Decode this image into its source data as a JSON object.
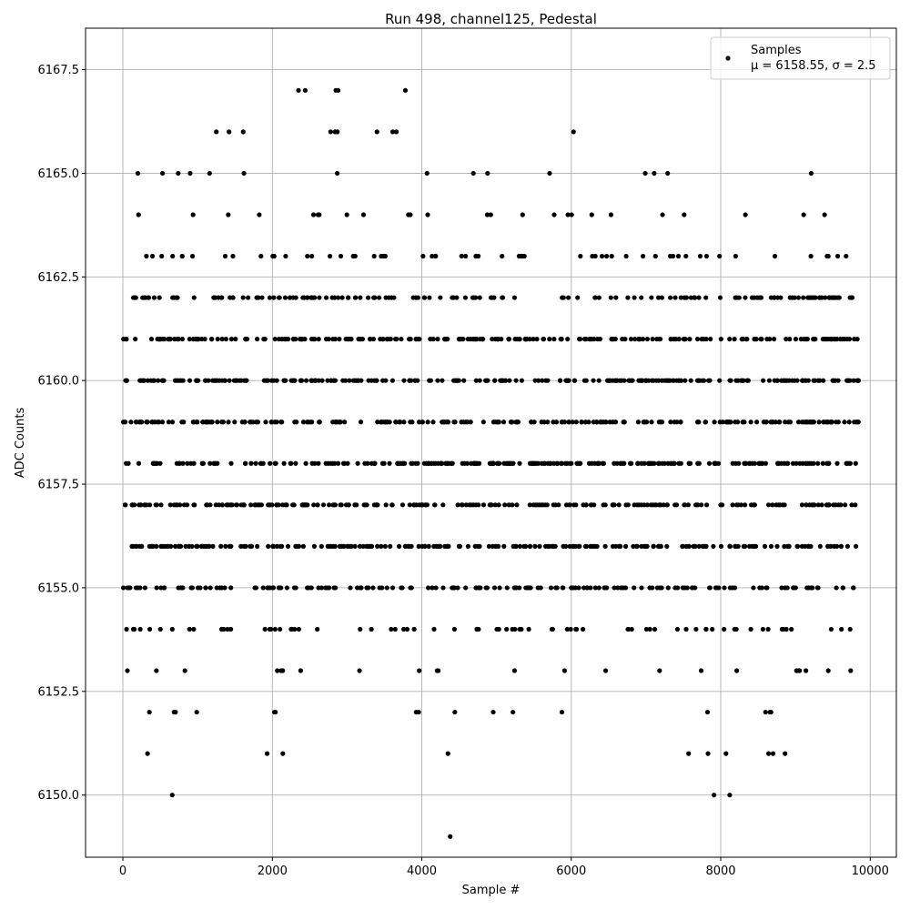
{
  "chart_data": {
    "type": "scatter",
    "title": "Run 498, channel125, Pedestal",
    "xlabel": "Sample #",
    "ylabel": "ADC Counts",
    "xlim": [
      -500,
      10350
    ],
    "ylim": [
      6148.5,
      6168.5
    ],
    "grid": true,
    "legend_position": "top-right",
    "marker_color": "#000000",
    "x_ticks": [
      0,
      2000,
      4000,
      6000,
      8000,
      10000
    ],
    "x_tick_labels": [
      "0",
      "2000",
      "4000",
      "6000",
      "8000",
      "10000"
    ],
    "y_ticks": [
      6150.0,
      6152.5,
      6155.0,
      6157.5,
      6160.0,
      6162.5,
      6165.0,
      6167.5
    ],
    "y_tick_labels": [
      "6150.0",
      "6152.5",
      "6155.0",
      "6157.5",
      "6160.0",
      "6162.5",
      "6165.0",
      "6167.5"
    ],
    "series": [
      {
        "name": "Samples",
        "stats_label": "μ = 6158.55, σ = 2.5",
        "mean": 6158.55,
        "sigma": 2.5,
        "n_samples": 9850,
        "points": [
          [
            660,
            6150
          ],
          [
            7910,
            6150
          ],
          [
            8120,
            6150
          ],
          [
            4380,
            6149
          ],
          [
            330,
            6151
          ],
          [
            1930,
            6151
          ],
          [
            2140,
            6151
          ],
          [
            4350,
            6151
          ],
          [
            7570,
            6151
          ],
          [
            7830,
            6151
          ],
          [
            8070,
            6151
          ],
          [
            8640,
            6151
          ],
          [
            8700,
            6151
          ],
          [
            8860,
            6151
          ],
          [
            2350,
            6167
          ],
          [
            2440,
            6167
          ],
          [
            2850,
            6167
          ],
          [
            2880,
            6167
          ],
          [
            3780,
            6167
          ],
          [
            1250,
            6166
          ],
          [
            1420,
            6166
          ],
          [
            1610,
            6166
          ],
          [
            2780,
            6166
          ],
          [
            2840,
            6166
          ],
          [
            2870,
            6166
          ],
          [
            3400,
            6166
          ],
          [
            3610,
            6166
          ],
          [
            3660,
            6166
          ],
          [
            6030,
            6166
          ]
        ],
        "row_segments": [
          {
            "y": 6152,
            "ranges": [
              [
                160,
                420
              ],
              [
                560,
                1020
              ],
              [
                2000,
                2500
              ],
              [
                3000,
                3100
              ],
              [
                3900,
                4700
              ],
              [
                4900,
                5500
              ],
              [
                5850,
                5900
              ],
              [
                7500,
                8100
              ],
              [
                8300,
                9050
              ],
              [
                9700,
                9850
              ]
            ],
            "density": 0.35
          },
          {
            "y": 6153,
            "ranges": [
              [
                0,
                560
              ],
              [
                820,
                840
              ],
              [
                1680,
                2150
              ],
              [
                2250,
                2700
              ],
              [
                3150,
                3250
              ],
              [
                3900,
                4050
              ],
              [
                4200,
                4700
              ],
              [
                5200,
                5650
              ],
              [
                5900,
                5920
              ],
              [
                6450,
                6470
              ],
              [
                7100,
                7250
              ],
              [
                7700,
                9150
              ],
              [
                9350,
                9850
              ]
            ],
            "density": 0.35
          },
          {
            "y": 6154,
            "ranges": [
              [
                0,
                560
              ],
              [
                650,
                1050
              ],
              [
                1300,
                2700
              ],
              [
                3150,
                3200
              ],
              [
                3300,
                3350
              ],
              [
                3500,
                4050
              ],
              [
                4100,
                6400
              ],
              [
                6600,
                9850
              ]
            ],
            "density": 0.55
          },
          {
            "y": 6155,
            "ranges": [
              [
                0,
                9850
              ]
            ],
            "density": 0.8
          },
          {
            "y": 6156,
            "ranges": [
              [
                0,
                9850
              ]
            ],
            "density": 0.9
          },
          {
            "y": 6157,
            "ranges": [
              [
                0,
                9850
              ]
            ],
            "density": 0.95
          },
          {
            "y": 6158,
            "ranges": [
              [
                0,
                9850
              ]
            ],
            "density": 1.0
          },
          {
            "y": 6159,
            "ranges": [
              [
                0,
                9850
              ]
            ],
            "density": 0.95
          },
          {
            "y": 6160,
            "ranges": [
              [
                0,
                9850
              ]
            ],
            "density": 1.0
          },
          {
            "y": 6161,
            "ranges": [
              [
                0,
                9850
              ]
            ],
            "density": 0.9
          },
          {
            "y": 6162,
            "ranges": [
              [
                60,
                9850
              ]
            ],
            "density": 0.75
          },
          {
            "y": 6163,
            "ranges": [
              [
                200,
                4250
              ],
              [
                4500,
                6100
              ],
              [
                6100,
                7600
              ],
              [
                7700,
                8000
              ],
              [
                8150,
                8350
              ],
              [
                8700,
                8750
              ],
              [
                9050,
                9850
              ]
            ],
            "density": 0.45
          },
          {
            "y": 6164,
            "ranges": [
              [
                200,
                220
              ],
              [
                510,
                650
              ],
              [
                850,
                1200
              ],
              [
                1400,
                1420
              ],
              [
                1560,
                2000
              ],
              [
                2300,
                3050
              ],
              [
                3200,
                3900
              ],
              [
                4000,
                4100
              ],
              [
                4700,
                4950
              ],
              [
                5200,
                5400
              ],
              [
                5700,
                6900
              ],
              [
                7100,
                7250
              ],
              [
                7500,
                7520
              ],
              [
                8320,
                8340
              ],
              [
                9100,
                9120
              ],
              [
                9380,
                9400
              ]
            ],
            "density": 0.35
          },
          {
            "y": 6165,
            "ranges": [
              [
                190,
                210
              ],
              [
                520,
                540
              ],
              [
                730,
                750
              ],
              [
                890,
                910
              ],
              [
                1150,
                1170
              ],
              [
                1610,
                1630
              ],
              [
                2350,
                2950
              ],
              [
                3300,
                3800
              ],
              [
                4060,
                4080
              ],
              [
                4680,
                4700
              ],
              [
                4870,
                4890
              ],
              [
                5700,
                5720
              ],
              [
                5980,
                6250
              ],
              [
                6500,
                6650
              ],
              [
                6980,
                7000
              ],
              [
                7100,
                7120
              ],
              [
                7280,
                7300
              ],
              [
                7560,
                7660
              ],
              [
                9200,
                9220
              ],
              [
                9380,
                9500
              ]
            ],
            "density": 0.25
          }
        ]
      }
    ]
  }
}
